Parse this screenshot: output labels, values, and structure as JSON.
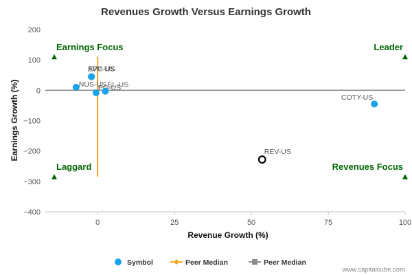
{
  "chart_data": {
    "type": "scatter",
    "title": "Revenues Growth Versus Earnings Growth",
    "xlabel": "Revenue Growth (%)",
    "ylabel": "Earnings Growth (%)",
    "xlim": [
      -17,
      100
    ],
    "ylim": [
      -400,
      200
    ],
    "xticks": [
      0,
      25,
      50,
      75,
      100
    ],
    "xtick_labels": [
      "0",
      "25",
      "50",
      "75",
      "100"
    ],
    "yticks": [
      200,
      100,
      0,
      -100,
      -200,
      -300,
      -400
    ],
    "ytick_labels": [
      "200",
      "100",
      "0",
      "−100",
      "−200",
      "−300",
      "−400"
    ],
    "grid": false,
    "legend_position": "bottom",
    "series": [
      {
        "name": "Symbol",
        "color": "#1aa3e8",
        "points": [
          {
            "label": "NUS-US",
            "x": -7,
            "y": 10
          },
          {
            "label": "EPC-US",
            "x": -2,
            "y": 45
          },
          {
            "label": "AVP-US",
            "x": -2,
            "y": 45
          },
          {
            "label": "PG-US",
            "x": -0.5,
            "y": -8
          },
          {
            "label": "EL-US",
            "x": 2.5,
            "y": -3
          },
          {
            "label": "COTY-US",
            "x": 90,
            "y": -45
          }
        ]
      }
    ],
    "highlight": {
      "label": "REV-US",
      "x": 53.5,
      "y": -228,
      "color": "#000000"
    },
    "peer_median_x": {
      "name": "Peer Median",
      "value": 0,
      "y_range": [
        110,
        -285
      ],
      "color": "#f5a623"
    },
    "peer_median_y": {
      "name": "Peer Median",
      "value": 0,
      "color": "#8c8c8c"
    },
    "quadrants": [
      {
        "label": "Earnings Focus",
        "corner": "top-left",
        "marker_y": 110
      },
      {
        "label": "Leader",
        "corner": "top-right",
        "marker_y": 110
      },
      {
        "label": "Laggard",
        "corner": "bottom-left",
        "marker_y": -285
      },
      {
        "label": "Revenues Focus",
        "corner": "bottom-right",
        "marker_y": -285
      }
    ],
    "quadrant_color": "#006600",
    "legend": [
      {
        "label": "Symbol",
        "symbol": "circle",
        "color": "#1aa3e8"
      },
      {
        "label": "Peer Median",
        "symbol": "line-diamond",
        "color": "#f5a623"
      },
      {
        "label": "Peer Median",
        "symbol": "line-square",
        "color": "#8c8c8c"
      }
    ],
    "credit": "www.capitalcube.com"
  }
}
